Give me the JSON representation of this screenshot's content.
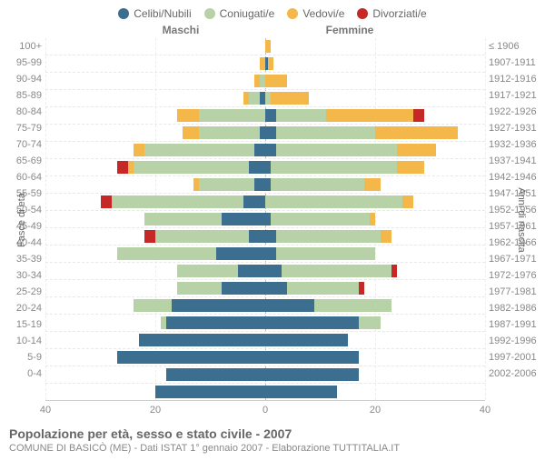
{
  "legend": [
    {
      "label": "Celibi/Nubili",
      "color": "#3b6e8f"
    },
    {
      "label": "Coniugati/e",
      "color": "#b7d2a6"
    },
    {
      "label": "Vedovi/e",
      "color": "#f4b84a"
    },
    {
      "label": "Divorziati/e",
      "color": "#c62828"
    }
  ],
  "gender": {
    "m": "Maschi",
    "f": "Femmine"
  },
  "axis": {
    "y_left_title": "Fasce di età",
    "y_right_title": "Anni di nascita",
    "x_max": 40,
    "x_ticks": [
      40,
      20,
      0,
      20,
      40
    ]
  },
  "footer": {
    "title": "Popolazione per età, sesso e stato civile - 2007",
    "subtitle": "COMUNE DI BASICÒ (ME) - Dati ISTAT 1° gennaio 2007 - Elaborazione TUTTITALIA.IT"
  },
  "rows": [
    {
      "age": "100+",
      "year": "≤ 1906",
      "m": {
        "c": 0,
        "co": 0,
        "v": 0,
        "d": 0
      },
      "f": {
        "c": 0,
        "co": 0,
        "v": 1,
        "d": 0
      }
    },
    {
      "age": "95-99",
      "year": "1907-1911",
      "m": {
        "c": 0,
        "co": 0,
        "v": 1,
        "d": 0
      },
      "f": {
        "c": 0.5,
        "co": 0,
        "v": 1,
        "d": 0
      }
    },
    {
      "age": "90-94",
      "year": "1912-1916",
      "m": {
        "c": 0,
        "co": 1,
        "v": 1,
        "d": 0
      },
      "f": {
        "c": 0,
        "co": 0,
        "v": 4,
        "d": 0
      }
    },
    {
      "age": "85-89",
      "year": "1917-1921",
      "m": {
        "c": 1,
        "co": 2,
        "v": 1,
        "d": 0
      },
      "f": {
        "c": 0,
        "co": 1,
        "v": 7,
        "d": 0
      }
    },
    {
      "age": "80-84",
      "year": "1922-1926",
      "m": {
        "c": 0,
        "co": 12,
        "v": 4,
        "d": 0
      },
      "f": {
        "c": 2,
        "co": 9,
        "v": 16,
        "d": 2
      }
    },
    {
      "age": "75-79",
      "year": "1927-1931",
      "m": {
        "c": 1,
        "co": 11,
        "v": 3,
        "d": 0
      },
      "f": {
        "c": 2,
        "co": 18,
        "v": 15,
        "d": 0
      }
    },
    {
      "age": "70-74",
      "year": "1932-1936",
      "m": {
        "c": 2,
        "co": 20,
        "v": 2,
        "d": 0
      },
      "f": {
        "c": 2,
        "co": 22,
        "v": 7,
        "d": 0
      }
    },
    {
      "age": "65-69",
      "year": "1937-1941",
      "m": {
        "c": 3,
        "co": 21,
        "v": 1,
        "d": 2
      },
      "f": {
        "c": 1,
        "co": 23,
        "v": 5,
        "d": 0
      }
    },
    {
      "age": "60-64",
      "year": "1942-1946",
      "m": {
        "c": 2,
        "co": 10,
        "v": 1,
        "d": 0
      },
      "f": {
        "c": 1,
        "co": 17,
        "v": 3,
        "d": 0
      }
    },
    {
      "age": "55-59",
      "year": "1947-1951",
      "m": {
        "c": 4,
        "co": 24,
        "v": 0,
        "d": 2
      },
      "f": {
        "c": 0,
        "co": 25,
        "v": 2,
        "d": 0
      }
    },
    {
      "age": "50-54",
      "year": "1952-1956",
      "m": {
        "c": 8,
        "co": 14,
        "v": 0,
        "d": 0
      },
      "f": {
        "c": 1,
        "co": 18,
        "v": 1,
        "d": 0
      }
    },
    {
      "age": "45-49",
      "year": "1957-1961",
      "m": {
        "c": 3,
        "co": 17,
        "v": 0,
        "d": 2
      },
      "f": {
        "c": 2,
        "co": 19,
        "v": 2,
        "d": 0
      }
    },
    {
      "age": "40-44",
      "year": "1962-1966",
      "m": {
        "c": 9,
        "co": 18,
        "v": 0,
        "d": 0
      },
      "f": {
        "c": 2,
        "co": 18,
        "v": 0,
        "d": 0
      }
    },
    {
      "age": "35-39",
      "year": "1967-1971",
      "m": {
        "c": 5,
        "co": 11,
        "v": 0,
        "d": 0
      },
      "f": {
        "c": 3,
        "co": 20,
        "v": 0,
        "d": 1
      }
    },
    {
      "age": "30-34",
      "year": "1972-1976",
      "m": {
        "c": 8,
        "co": 8,
        "v": 0,
        "d": 0
      },
      "f": {
        "c": 4,
        "co": 13,
        "v": 0,
        "d": 1
      }
    },
    {
      "age": "25-29",
      "year": "1977-1981",
      "m": {
        "c": 17,
        "co": 7,
        "v": 0,
        "d": 0
      },
      "f": {
        "c": 9,
        "co": 14,
        "v": 0,
        "d": 0
      }
    },
    {
      "age": "20-24",
      "year": "1982-1986",
      "m": {
        "c": 18,
        "co": 1,
        "v": 0,
        "d": 0
      },
      "f": {
        "c": 17,
        "co": 4,
        "v": 0,
        "d": 0
      }
    },
    {
      "age": "15-19",
      "year": "1987-1991",
      "m": {
        "c": 23,
        "co": 0,
        "v": 0,
        "d": 0
      },
      "f": {
        "c": 15,
        "co": 0,
        "v": 0,
        "d": 0
      }
    },
    {
      "age": "10-14",
      "year": "1992-1996",
      "m": {
        "c": 27,
        "co": 0,
        "v": 0,
        "d": 0
      },
      "f": {
        "c": 17,
        "co": 0,
        "v": 0,
        "d": 0
      }
    },
    {
      "age": "5-9",
      "year": "1997-2001",
      "m": {
        "c": 18,
        "co": 0,
        "v": 0,
        "d": 0
      },
      "f": {
        "c": 17,
        "co": 0,
        "v": 0,
        "d": 0
      }
    },
    {
      "age": "0-4",
      "year": "2002-2006",
      "m": {
        "c": 20,
        "co": 0,
        "v": 0,
        "d": 0
      },
      "f": {
        "c": 13,
        "co": 0,
        "v": 0,
        "d": 0
      }
    }
  ],
  "colors": {
    "celibi": "#3b6e8f",
    "coniugati": "#b7d2a6",
    "vedovi": "#f4b84a",
    "divorziati": "#c62828"
  }
}
